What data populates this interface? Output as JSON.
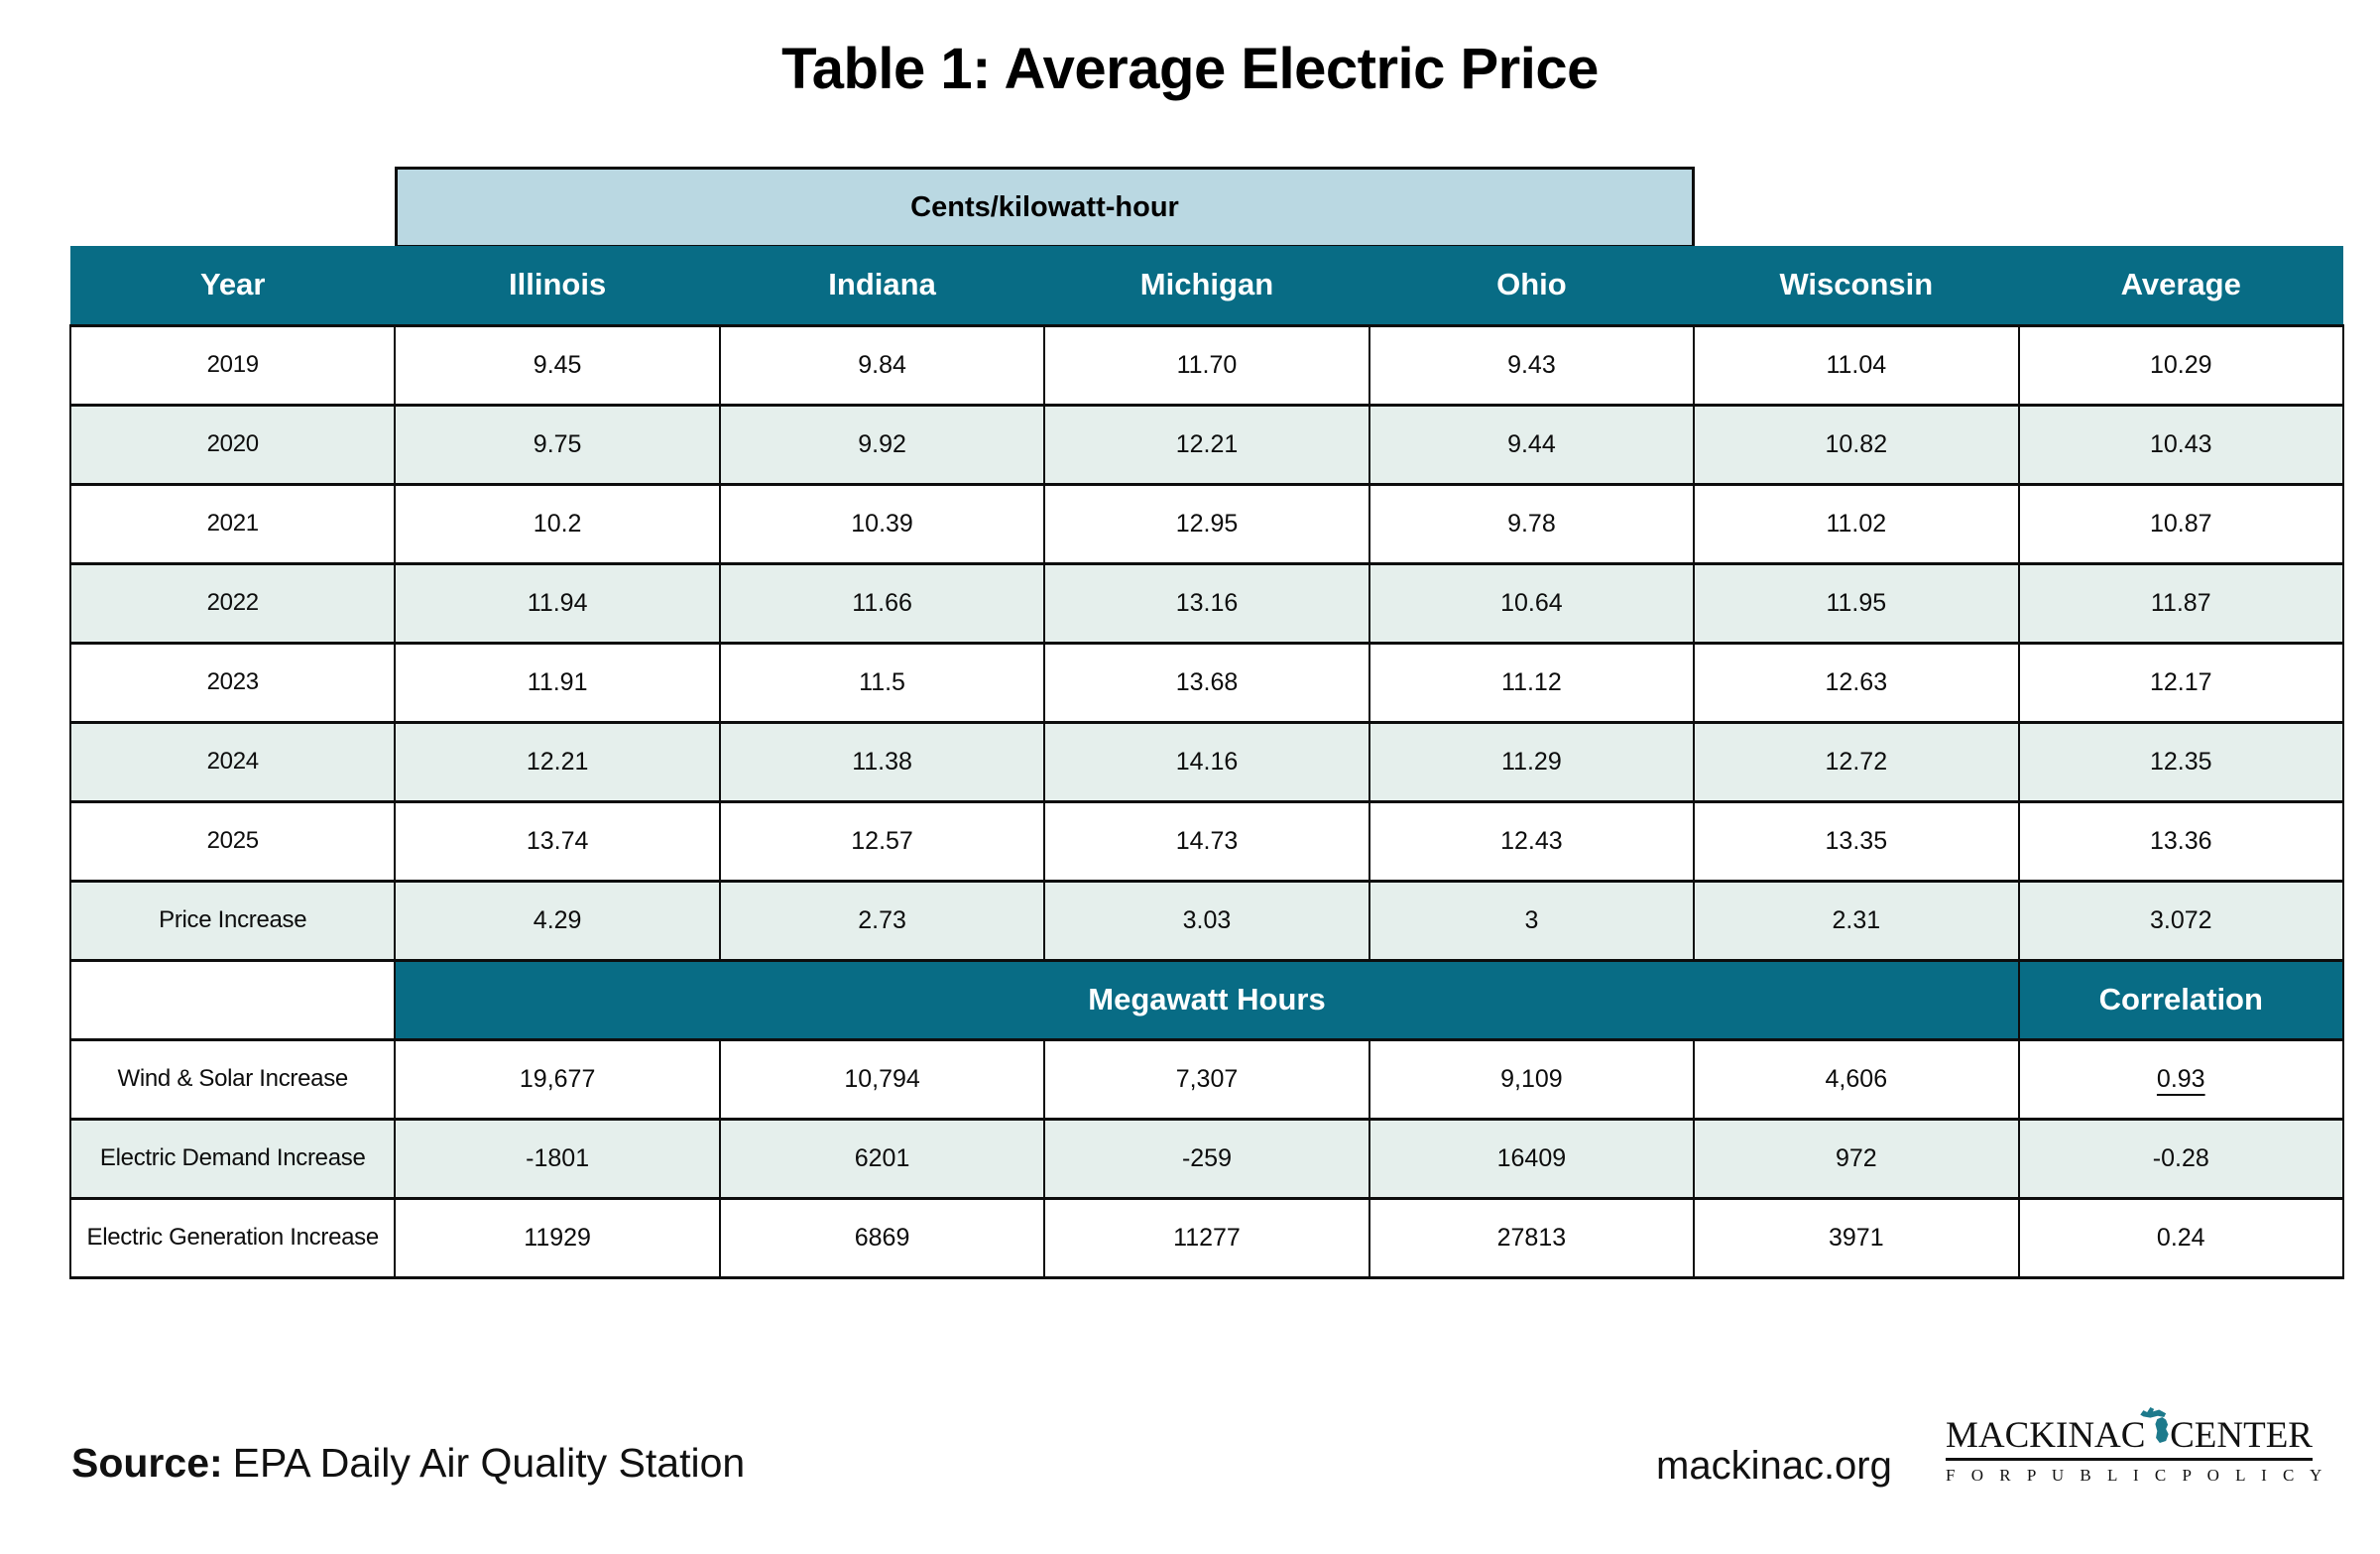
{
  "title": "Table 1: Average Electric Price",
  "table": {
    "unit_band": "Cents/kilowatt-hour",
    "columns": [
      "Year",
      "Illinois",
      "Indiana",
      "Michigan",
      "Ohio",
      "Wisconsin",
      "Average"
    ],
    "price_rows": [
      {
        "label": "2019",
        "values": [
          "9.45",
          "9.84",
          "11.70",
          "9.43",
          "11.04",
          "10.29"
        ]
      },
      {
        "label": "2020",
        "values": [
          "9.75",
          "9.92",
          "12.21",
          "9.44",
          "10.82",
          "10.43"
        ]
      },
      {
        "label": "2021",
        "values": [
          "10.2",
          "10.39",
          "12.95",
          "9.78",
          "11.02",
          "10.87"
        ]
      },
      {
        "label": "2022",
        "values": [
          "11.94",
          "11.66",
          "13.16",
          "10.64",
          "11.95",
          "11.87"
        ]
      },
      {
        "label": "2023",
        "values": [
          "11.91",
          "11.5",
          "13.68",
          "11.12",
          "12.63",
          "12.17"
        ]
      },
      {
        "label": "2024",
        "values": [
          "12.21",
          "11.38",
          "14.16",
          "11.29",
          "12.72",
          "12.35"
        ]
      },
      {
        "label": "2025",
        "values": [
          "13.74",
          "12.57",
          "14.73",
          "12.43",
          "13.35",
          "13.36"
        ]
      },
      {
        "label": "Price Increase",
        "values": [
          "4.29",
          "2.73",
          "3.03",
          "3",
          "2.31",
          "3.072"
        ]
      }
    ],
    "megawatt_label": "Megawatt Hours",
    "correlation_label": "Correlation",
    "mwh_rows": [
      {
        "label": "Wind & Solar Increase",
        "values": [
          "19,677",
          "10,794",
          "7,307",
          "9,109",
          "4,606"
        ],
        "correlation": "0.93",
        "underline": true
      },
      {
        "label": "Electric Demand Increase",
        "values": [
          "-1801",
          "6201",
          "-259",
          "16409",
          "972"
        ],
        "correlation": "-0.28",
        "underline": false
      },
      {
        "label": "Electric Generation Increase",
        "values": [
          "11929",
          "6869",
          "11277",
          "27813",
          "3971"
        ],
        "correlation": "0.24",
        "underline": false
      }
    ]
  },
  "footer": {
    "source_label": "Source:",
    "source_text": "EPA Daily Air Quality Station",
    "website": "mackinac.org",
    "logo": {
      "word_left": "MACKINAC",
      "word_right": "CENTER",
      "subline": "F O R   P U B L I C   P O L I C Y",
      "icon": "michigan-state-silhouette"
    }
  },
  "colors": {
    "header_teal": "#086C85",
    "band_blue": "#BAD8E2",
    "zebra_row": "#E5EFEC",
    "border": "#0d0d0d",
    "logo_michigan_teal": "#1D7A8C"
  },
  "chart_data": {
    "type": "table",
    "title": "Table 1: Average Electric Price",
    "unit": "Cents/kilowatt-hour",
    "columns": [
      "Year",
      "Illinois",
      "Indiana",
      "Michigan",
      "Ohio",
      "Wisconsin",
      "Average"
    ],
    "rows": [
      [
        "2019",
        9.45,
        9.84,
        11.7,
        9.43,
        11.04,
        10.29
      ],
      [
        "2020",
        9.75,
        9.92,
        12.21,
        9.44,
        10.82,
        10.43
      ],
      [
        "2021",
        10.2,
        10.39,
        12.95,
        9.78,
        11.02,
        10.87
      ],
      [
        "2022",
        11.94,
        11.66,
        13.16,
        10.64,
        11.95,
        11.87
      ],
      [
        "2023",
        11.91,
        11.5,
        13.68,
        11.12,
        12.63,
        12.17
      ],
      [
        "2024",
        12.21,
        11.38,
        14.16,
        11.29,
        12.72,
        12.35
      ],
      [
        "2025",
        13.74,
        12.57,
        14.73,
        12.43,
        13.35,
        13.36
      ],
      [
        "Price Increase",
        4.29,
        2.73,
        3.03,
        3,
        2.31,
        3.072
      ]
    ],
    "megawatt_hours_section": {
      "section_label": "Megawatt Hours",
      "correlation_label": "Correlation",
      "rows": [
        {
          "label": "Wind & Solar Increase",
          "values": [
            19677,
            10794,
            7307,
            9109,
            4606
          ],
          "correlation": 0.93
        },
        {
          "label": "Electric Demand Increase",
          "values": [
            -1801,
            6201,
            -259,
            16409,
            972
          ],
          "correlation": -0.28
        },
        {
          "label": "Electric Generation Increase",
          "values": [
            11929,
            6869,
            11277,
            27813,
            3971
          ],
          "correlation": 0.24
        }
      ]
    }
  }
}
